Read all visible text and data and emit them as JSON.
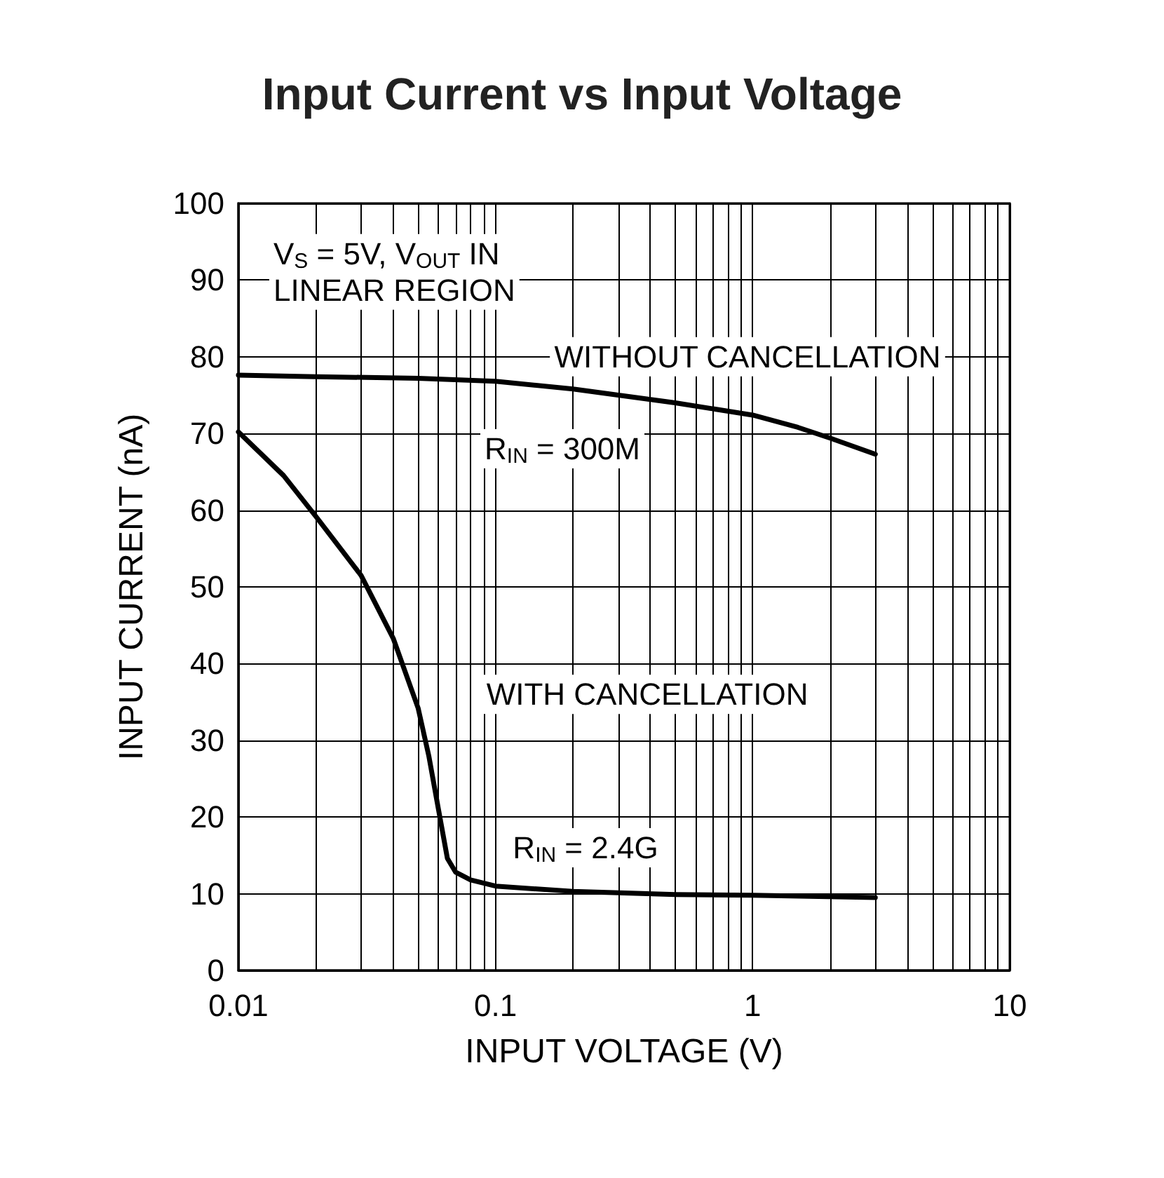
{
  "chart_data": {
    "type": "line",
    "title": "Input Current vs Input Voltage",
    "xlabel": "INPUT VOLTAGE (V)",
    "ylabel": "INPUT CURRENT (nA)",
    "log": "x",
    "xlim": [
      0.01,
      10
    ],
    "xticks": [
      0.01,
      0.1,
      1,
      10
    ],
    "ylim": [
      0,
      100
    ],
    "yticks": [
      0,
      10,
      20,
      30,
      40,
      50,
      60,
      70,
      80,
      90,
      100
    ],
    "grid": true,
    "marker": "none",
    "line_style": "solid",
    "series": [
      {
        "color": "#000000",
        "x": [
          0.01,
          0.02,
          0.05,
          0.1,
          0.2,
          0.5,
          1,
          1.5,
          2,
          3
        ],
        "values": [
          77.6,
          77.4,
          77.2,
          76.8,
          75.8,
          74,
          72.4,
          70.8,
          69.4,
          67.3
        ]
      },
      {
        "color": "#000000",
        "x": [
          0.01,
          0.015,
          0.02,
          0.03,
          0.04,
          0.05,
          0.055,
          0.06,
          0.065,
          0.07,
          0.08,
          0.1,
          0.2,
          0.5,
          1,
          3
        ],
        "values": [
          70.2,
          64.5,
          59.2,
          51.5,
          43.3,
          34.2,
          28,
          21,
          14.6,
          12.8,
          11.8,
          11,
          10.3,
          9.9,
          9.8,
          9.5
        ]
      }
    ],
    "annotations": [
      "V$_{S}$ = 5V, V$_{OUT}$ IN\nLINEAR REGION",
      "WITHOUT CANCELLATION",
      "R$_{IN}$ = 300M",
      "WITH CANCELLATION",
      "R$_{IN}$ = 2.4G"
    ]
  }
}
